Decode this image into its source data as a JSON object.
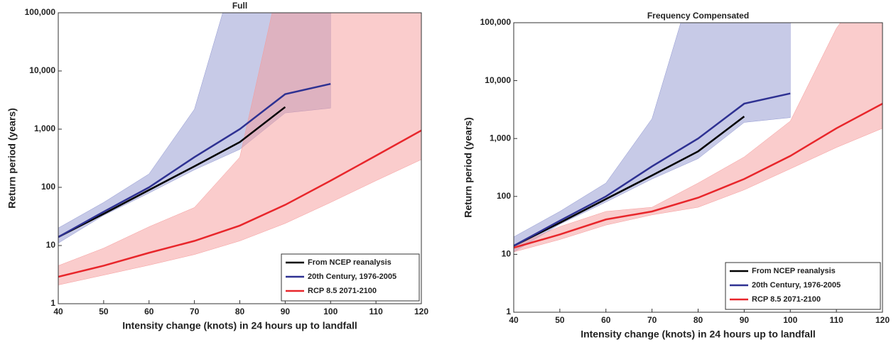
{
  "chart_data": [
    {
      "type": "line",
      "title": "Full",
      "xlabel": "Intensity change (knots) in 24 hours up to landfall",
      "ylabel": "Return period (years)",
      "x": [
        40,
        50,
        60,
        70,
        80,
        90,
        100,
        110,
        120
      ],
      "xlim": [
        40,
        120
      ],
      "xticks": [
        40,
        50,
        60,
        70,
        80,
        90,
        100,
        110,
        120
      ],
      "ylim": [
        1,
        100000
      ],
      "log_y": true,
      "yticks": [
        1,
        10,
        100,
        {
          "value": 1000,
          "label": "1,000"
        },
        {
          "value": 10000,
          "label": "10,000"
        },
        {
          "value": 100000,
          "label": "100,000"
        }
      ],
      "legend": "lower right",
      "series": [
        {
          "name": "From NCEP reanalysis",
          "color": "#000000",
          "values": [
            14,
            35,
            90,
            230,
            600,
            2400,
            null,
            null,
            null
          ]
        },
        {
          "name": "20th Century, 1976-2005",
          "color": "#2e3192",
          "band_color": "#8f96d0",
          "values": [
            14,
            38,
            100,
            330,
            1000,
            4000,
            6000,
            null,
            null
          ],
          "lower": [
            11,
            33,
            80,
            200,
            450,
            1900,
            2300,
            null,
            null
          ],
          "upper": [
            20,
            55,
            170,
            2200,
            1000000,
            1000000,
            1000000,
            null,
            null
          ]
        },
        {
          "name": "RCP 8.5 2071-2100",
          "color": "#e8262b",
          "band_color": "#f59a9a",
          "values": [
            2.9,
            4.5,
            7.5,
            12,
            22,
            50,
            130,
            350,
            950
          ],
          "lower": [
            2.1,
            3.1,
            4.6,
            7,
            12,
            24,
            55,
            130,
            300
          ],
          "upper": [
            4.5,
            9,
            21,
            45,
            330,
            1000000,
            1000000,
            1000000,
            1000000
          ]
        }
      ]
    },
    {
      "type": "line",
      "title": "Frequency Compensated",
      "xlabel": "Intensity change (knots) in 24 hours up to landfall",
      "ylabel": "Return period (years)",
      "x": [
        40,
        50,
        60,
        70,
        80,
        90,
        100,
        110,
        120
      ],
      "xlim": [
        40,
        120
      ],
      "xticks": [
        40,
        50,
        60,
        70,
        80,
        90,
        100,
        110,
        120
      ],
      "ylim": [
        1,
        100000
      ],
      "log_y": true,
      "yticks": [
        1,
        10,
        100,
        {
          "value": 1000,
          "label": "1,000"
        },
        {
          "value": 10000,
          "label": "10,000"
        },
        {
          "value": 100000,
          "label": "100,000"
        }
      ],
      "legend": "lower right",
      "series": [
        {
          "name": "From NCEP reanalysis",
          "color": "#000000",
          "values": [
            14,
            35,
            90,
            230,
            600,
            2400,
            null,
            null,
            null
          ]
        },
        {
          "name": "20th Century, 1976-2005",
          "color": "#2e3192",
          "band_color": "#8f96d0",
          "values": [
            14,
            38,
            100,
            330,
            1000,
            4000,
            6000,
            null,
            null
          ],
          "lower": [
            11,
            33,
            80,
            200,
            450,
            1900,
            2300,
            null,
            null
          ],
          "upper": [
            20,
            55,
            170,
            2200,
            1000000,
            1000000,
            1000000,
            null,
            null
          ]
        },
        {
          "name": "RCP 8.5 2071-2100",
          "color": "#e8262b",
          "band_color": "#f59a9a",
          "values": [
            13,
            22,
            40,
            55,
            95,
            200,
            500,
            1500,
            4000
          ],
          "lower": [
            11,
            18,
            32,
            48,
            65,
            130,
            300,
            700,
            1500
          ],
          "upper": [
            14,
            30,
            55,
            65,
            170,
            480,
            2000,
            80000,
            1000000
          ]
        }
      ]
    }
  ]
}
